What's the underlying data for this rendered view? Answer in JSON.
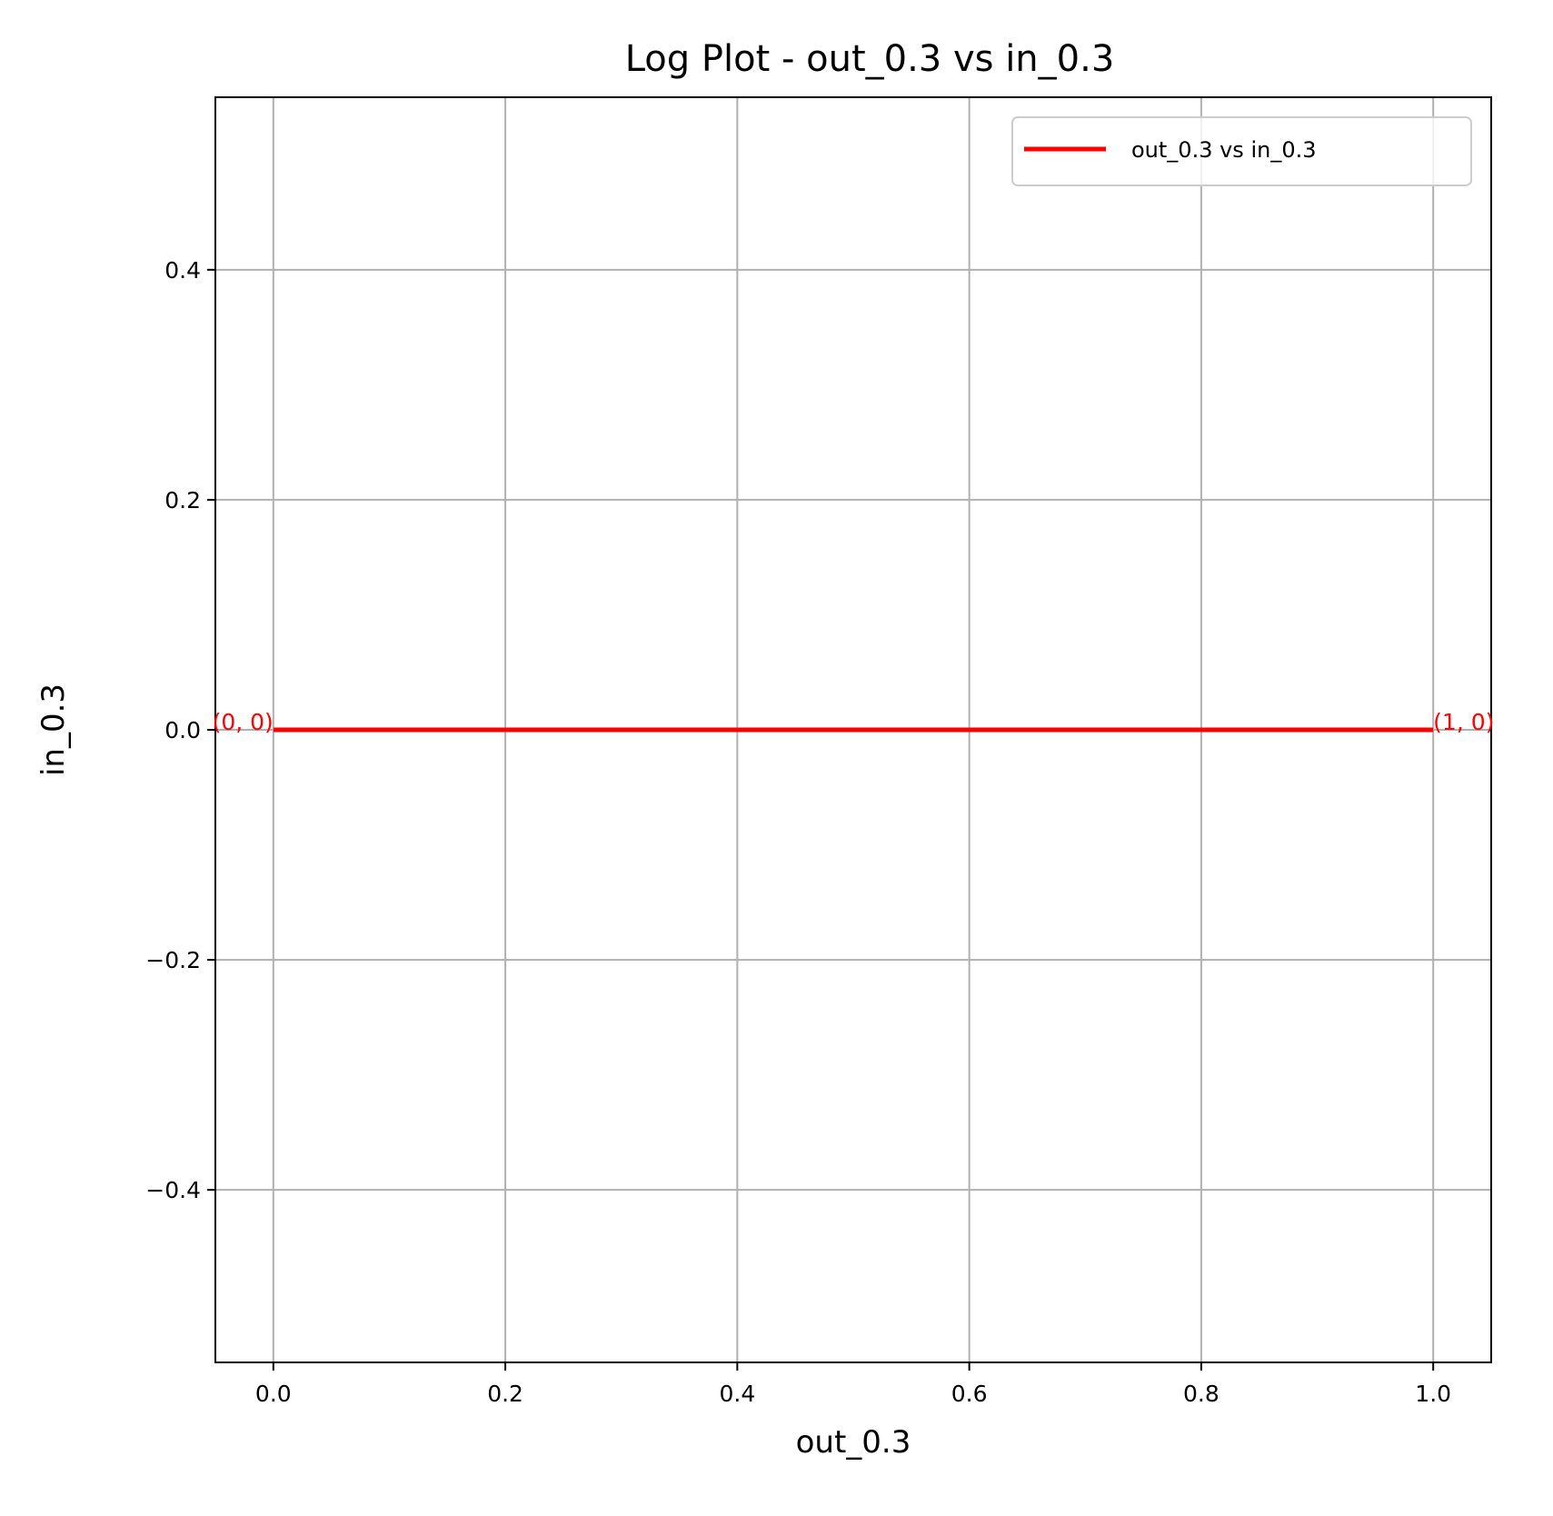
{
  "chart_data": {
    "type": "line",
    "title": "Log Plot - out_0.3 vs in_0.3",
    "xlabel": "out_0.3",
    "ylabel": "in_0.3",
    "xlim": [
      -0.05,
      1.05
    ],
    "ylim": [
      -0.55,
      0.55
    ],
    "x_ticks": [
      0.0,
      0.2,
      0.4,
      0.6,
      0.8,
      1.0
    ],
    "x_tick_labels": [
      "0.0",
      "0.2",
      "0.4",
      "0.6",
      "0.8",
      "1.0"
    ],
    "y_ticks": [
      -0.4,
      -0.2,
      0.0,
      0.2,
      0.4
    ],
    "y_tick_labels": [
      "−0.4",
      "−0.2",
      "0.0",
      "0.2",
      "0.4"
    ],
    "grid": true,
    "legend_position": "top-right",
    "series": [
      {
        "name": "out_0.3 vs in_0.3",
        "color": "#ff0000",
        "x": [
          0,
          1
        ],
        "y": [
          0,
          0
        ]
      }
    ],
    "annotations": [
      {
        "text": "(0, 0)",
        "x": 0,
        "y": 0,
        "align": "end",
        "color": "#ff0000"
      },
      {
        "text": "(1, 0)",
        "x": 1,
        "y": 0,
        "align": "start",
        "color": "#ff0000"
      }
    ]
  }
}
